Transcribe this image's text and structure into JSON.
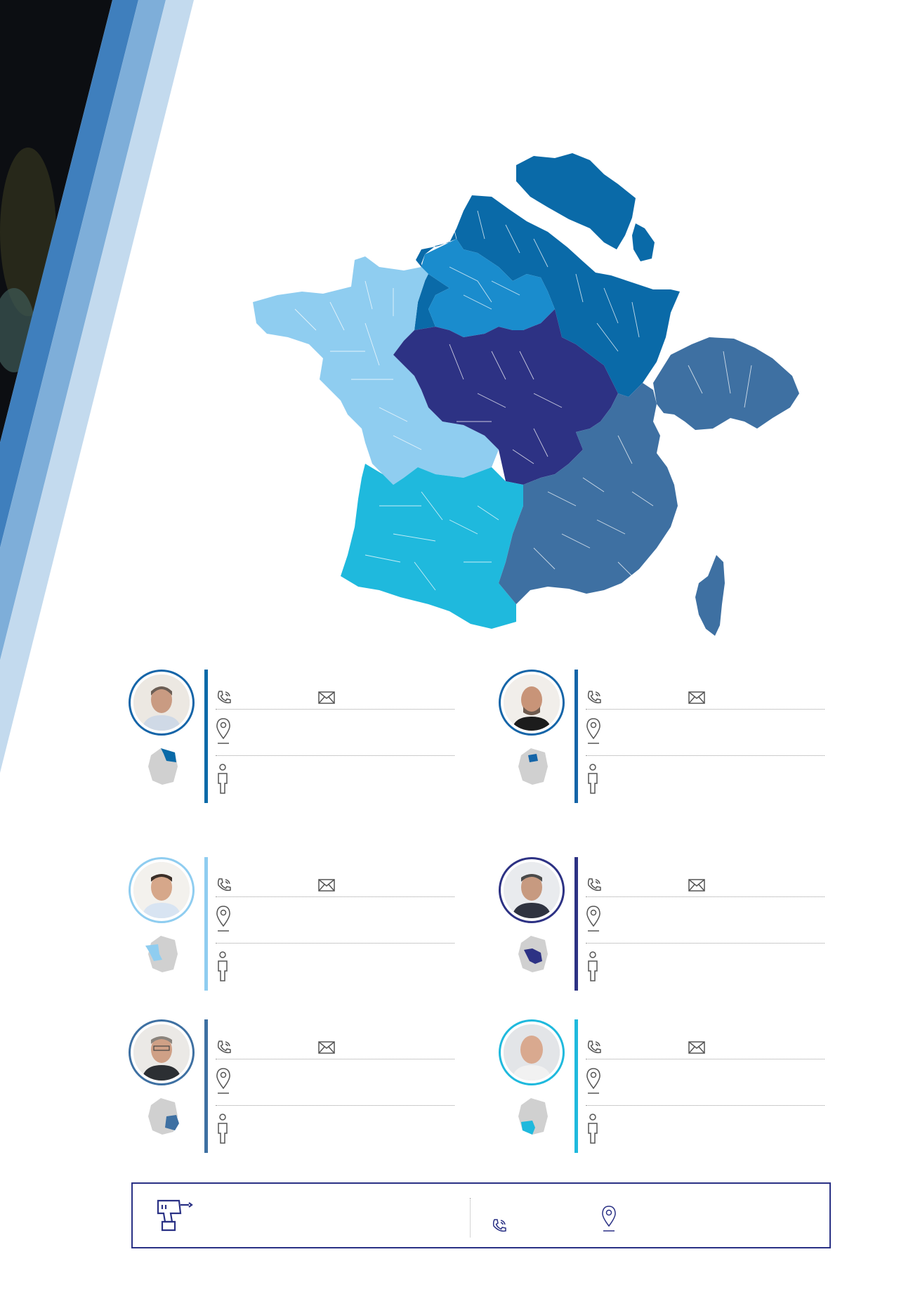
{
  "colors": {
    "stripe_dark": "#3f7fbd",
    "stripe_mid": "#7eaed9",
    "stripe_light": "#c3daee",
    "region_north_east": "#0a6aa8",
    "region_paris": "#1a8ccd",
    "region_west": "#8fcdf0",
    "region_centre": "#2d3284",
    "region_south_west": "#1fb9dd",
    "region_south_east": "#3e70a2",
    "mini_map_grey": "#d0d0d0",
    "divider_line": "#9a9a9a",
    "footer_border": "#2a3185",
    "icon_stroke": "#555555",
    "background_photo": "#0c0e12"
  },
  "map": {
    "regions": [
      {
        "id": "north-east",
        "color": "#0a6aa8"
      },
      {
        "id": "paris",
        "color": "#1a8ccd"
      },
      {
        "id": "west",
        "color": "#8fcdf0"
      },
      {
        "id": "centre",
        "color": "#2d3284"
      },
      {
        "id": "south-west",
        "color": "#1fb9dd"
      },
      {
        "id": "south-east",
        "color": "#3e70a2"
      }
    ]
  },
  "contacts": [
    {
      "region": "north-east",
      "accent": "#0a6aa8",
      "ring": "#1565a8",
      "icons": [
        "phone-icon",
        "mail-icon",
        "location-pin-icon",
        "person-icon"
      ]
    },
    {
      "region": "paris",
      "accent": "#1565a8",
      "ring": "#1565a8",
      "icons": [
        "phone-icon",
        "mail-icon",
        "location-pin-icon",
        "person-icon"
      ]
    },
    {
      "region": "west",
      "accent": "#8fcdf0",
      "ring": "#8fcdf0",
      "icons": [
        "phone-icon",
        "mail-icon",
        "location-pin-icon",
        "person-icon"
      ]
    },
    {
      "region": "centre",
      "accent": "#2d3284",
      "ring": "#2d3284",
      "icons": [
        "phone-icon",
        "mail-icon",
        "location-pin-icon",
        "person-icon"
      ]
    },
    {
      "region": "south-east",
      "accent": "#3e70a2",
      "ring": "#3e70a2",
      "icons": [
        "phone-icon",
        "mail-icon",
        "location-pin-icon",
        "person-icon"
      ]
    },
    {
      "region": "south-west",
      "accent": "#1fb9dd",
      "ring": "#1fb9dd",
      "icons": [
        "phone-icon",
        "mail-icon",
        "location-pin-icon",
        "person-icon"
      ]
    }
  ],
  "footer": {
    "icons": [
      "drill-icon",
      "phone-icon",
      "location-pin-icon"
    ]
  }
}
